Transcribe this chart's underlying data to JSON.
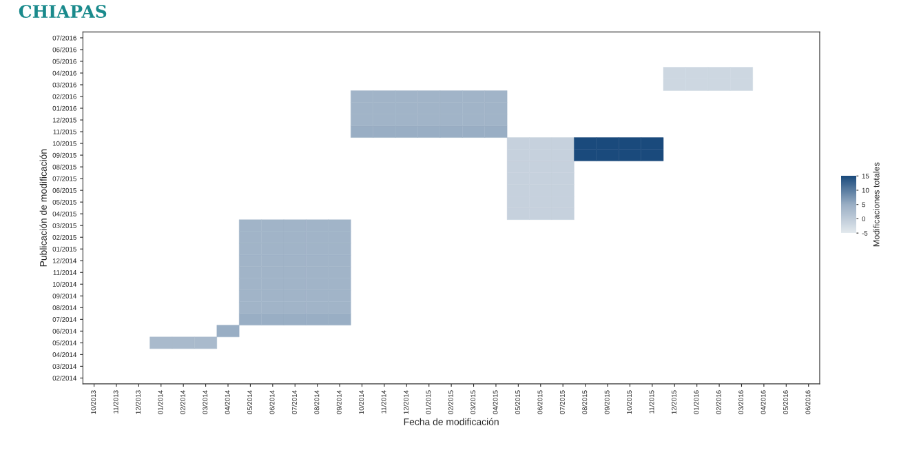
{
  "chart_data": {
    "type": "heatmap",
    "title": "CHIAPAS",
    "xlabel": "Fecha de modificación",
    "ylabel": "Publicación de modificación",
    "clabel": "Modificaciones totales",
    "categories": [
      "10/2013",
      "11/2013",
      "12/2013",
      "01/2014",
      "02/2014",
      "03/2014",
      "04/2014",
      "05/2014",
      "06/2014",
      "07/2014",
      "08/2014",
      "09/2014",
      "10/2014",
      "11/2014",
      "12/2014",
      "01/2015",
      "02/2015",
      "03/2015",
      "04/2015",
      "05/2015",
      "06/2015",
      "07/2015",
      "08/2015",
      "09/2015",
      "10/2015",
      "11/2015",
      "12/2015",
      "01/2016",
      "02/2016",
      "03/2016",
      "04/2016",
      "05/2016",
      "06/2016"
    ],
    "y_categories": [
      "07/2016",
      "06/2016",
      "05/2016",
      "04/2016",
      "03/2016",
      "02/2016",
      "01/2016",
      "12/2015",
      "11/2015",
      "10/2015",
      "09/2015",
      "08/2015",
      "07/2015",
      "06/2015",
      "05/2015",
      "04/2015",
      "03/2015",
      "02/2015",
      "01/2015",
      "12/2014",
      "11/2014",
      "10/2014",
      "09/2014",
      "08/2014",
      "07/2014",
      "06/2014",
      "05/2014",
      "04/2014",
      "03/2014",
      "02/2014"
    ],
    "cells": [
      [
        null,
        null,
        null,
        null,
        null,
        null,
        null,
        null,
        null,
        null,
        null,
        null,
        null,
        null,
        null,
        null,
        null,
        null,
        null,
        null,
        null,
        null,
        null,
        null,
        null,
        null,
        null,
        null,
        null,
        null,
        null,
        null,
        null
      ],
      [
        null,
        null,
        null,
        null,
        null,
        null,
        null,
        null,
        null,
        null,
        null,
        null,
        null,
        null,
        null,
        null,
        null,
        null,
        null,
        null,
        null,
        null,
        null,
        null,
        null,
        null,
        null,
        null,
        null,
        null,
        null,
        null,
        null
      ],
      [
        null,
        null,
        null,
        null,
        null,
        null,
        null,
        null,
        null,
        null,
        null,
        null,
        null,
        null,
        null,
        null,
        null,
        null,
        null,
        null,
        null,
        null,
        null,
        null,
        null,
        null,
        null,
        null,
        null,
        null,
        null,
        null,
        null
      ],
      [
        null,
        null,
        null,
        null,
        null,
        null,
        null,
        null,
        null,
        null,
        null,
        null,
        null,
        null,
        null,
        null,
        null,
        null,
        null,
        null,
        null,
        null,
        null,
        null,
        null,
        null,
        -2,
        -2,
        -2,
        -2,
        null,
        null,
        null
      ],
      [
        null,
        null,
        null,
        null,
        null,
        null,
        null,
        null,
        null,
        null,
        null,
        null,
        null,
        null,
        null,
        null,
        null,
        null,
        null,
        null,
        null,
        null,
        null,
        null,
        null,
        null,
        -2,
        -2,
        -2,
        -2,
        null,
        null,
        null
      ],
      [
        null,
        null,
        null,
        null,
        null,
        null,
        null,
        null,
        null,
        null,
        null,
        null,
        4,
        4,
        4,
        4,
        4,
        4,
        4,
        null,
        null,
        null,
        null,
        null,
        null,
        null,
        null,
        null,
        null,
        null,
        null,
        null,
        null
      ],
      [
        null,
        null,
        null,
        null,
        null,
        null,
        null,
        null,
        null,
        null,
        null,
        null,
        4,
        4,
        4,
        4,
        4,
        4,
        4,
        null,
        null,
        null,
        null,
        null,
        null,
        null,
        null,
        null,
        null,
        null,
        null,
        null,
        null
      ],
      [
        null,
        null,
        null,
        null,
        null,
        null,
        null,
        null,
        null,
        null,
        null,
        null,
        4,
        4,
        4,
        4,
        4,
        4,
        4,
        null,
        null,
        null,
        null,
        null,
        null,
        null,
        null,
        null,
        null,
        null,
        null,
        null,
        null
      ],
      [
        null,
        null,
        null,
        null,
        null,
        null,
        null,
        null,
        null,
        null,
        null,
        null,
        5,
        5,
        5,
        5,
        5,
        5,
        5,
        null,
        null,
        null,
        null,
        null,
        null,
        null,
        null,
        null,
        null,
        null,
        null,
        null,
        null
      ],
      [
        null,
        null,
        null,
        null,
        null,
        null,
        null,
        null,
        null,
        null,
        null,
        null,
        null,
        null,
        null,
        null,
        null,
        null,
        null,
        -1,
        -1,
        -1,
        15,
        15,
        15,
        15,
        null,
        null,
        null,
        null,
        null,
        null,
        null
      ],
      [
        null,
        null,
        null,
        null,
        null,
        null,
        null,
        null,
        null,
        null,
        null,
        null,
        null,
        null,
        null,
        null,
        null,
        null,
        null,
        -1,
        -1,
        -1,
        15,
        15,
        15,
        15,
        null,
        null,
        null,
        null,
        null,
        null,
        null
      ],
      [
        null,
        null,
        null,
        null,
        null,
        null,
        null,
        null,
        null,
        null,
        null,
        null,
        null,
        null,
        null,
        null,
        null,
        null,
        null,
        -1,
        -1,
        -1,
        null,
        null,
        null,
        null,
        null,
        null,
        null,
        null,
        null,
        null,
        null
      ],
      [
        null,
        null,
        null,
        null,
        null,
        null,
        null,
        null,
        null,
        null,
        null,
        null,
        null,
        null,
        null,
        null,
        null,
        null,
        null,
        -1,
        -1,
        -1,
        null,
        null,
        null,
        null,
        null,
        null,
        null,
        null,
        null,
        null,
        null
      ],
      [
        null,
        null,
        null,
        null,
        null,
        null,
        null,
        null,
        null,
        null,
        null,
        null,
        null,
        null,
        null,
        null,
        null,
        null,
        null,
        -1,
        -1,
        -1,
        null,
        null,
        null,
        null,
        null,
        null,
        null,
        null,
        null,
        null,
        null
      ],
      [
        null,
        null,
        null,
        null,
        null,
        null,
        null,
        null,
        null,
        null,
        null,
        null,
        null,
        null,
        null,
        null,
        null,
        null,
        null,
        -1,
        -1,
        -1,
        null,
        null,
        null,
        null,
        null,
        null,
        null,
        null,
        null,
        null,
        null
      ],
      [
        null,
        null,
        null,
        null,
        null,
        null,
        null,
        null,
        null,
        null,
        null,
        null,
        null,
        null,
        null,
        null,
        null,
        null,
        null,
        -1,
        -1,
        -1,
        null,
        null,
        null,
        null,
        null,
        null,
        null,
        null,
        null,
        null,
        null
      ],
      [
        null,
        null,
        null,
        null,
        null,
        null,
        null,
        4,
        4,
        4,
        4,
        4,
        null,
        null,
        null,
        null,
        null,
        null,
        null,
        null,
        null,
        null,
        null,
        null,
        null,
        null,
        null,
        null,
        null,
        null,
        null,
        null,
        null
      ],
      [
        null,
        null,
        null,
        null,
        null,
        null,
        null,
        4,
        4,
        4,
        4,
        4,
        null,
        null,
        null,
        null,
        null,
        null,
        null,
        null,
        null,
        null,
        null,
        null,
        null,
        null,
        null,
        null,
        null,
        null,
        null,
        null,
        null
      ],
      [
        null,
        null,
        null,
        null,
        null,
        null,
        null,
        4,
        4,
        4,
        4,
        4,
        null,
        null,
        null,
        null,
        null,
        null,
        null,
        null,
        null,
        null,
        null,
        null,
        null,
        null,
        null,
        null,
        null,
        null,
        null,
        null,
        null
      ],
      [
        null,
        null,
        null,
        null,
        null,
        null,
        null,
        4,
        4,
        4,
        4,
        4,
        null,
        null,
        null,
        null,
        null,
        null,
        null,
        null,
        null,
        null,
        null,
        null,
        null,
        null,
        null,
        null,
        null,
        null,
        null,
        null,
        null
      ],
      [
        null,
        null,
        null,
        null,
        null,
        null,
        null,
        4,
        4,
        4,
        4,
        4,
        null,
        null,
        null,
        null,
        null,
        null,
        null,
        null,
        null,
        null,
        null,
        null,
        null,
        null,
        null,
        null,
        null,
        null,
        null,
        null,
        null
      ],
      [
        null,
        null,
        null,
        null,
        null,
        null,
        null,
        4,
        4,
        4,
        4,
        4,
        null,
        null,
        null,
        null,
        null,
        null,
        null,
        null,
        null,
        null,
        null,
        null,
        null,
        null,
        null,
        null,
        null,
        null,
        null,
        null,
        null
      ],
      [
        null,
        null,
        null,
        null,
        null,
        null,
        null,
        4,
        4,
        4,
        4,
        4,
        null,
        null,
        null,
        null,
        null,
        null,
        null,
        null,
        null,
        null,
        null,
        null,
        null,
        null,
        null,
        null,
        null,
        null,
        null,
        null,
        null
      ],
      [
        null,
        null,
        null,
        null,
        null,
        null,
        null,
        4,
        4,
        4,
        4,
        4,
        null,
        null,
        null,
        null,
        null,
        null,
        null,
        null,
        null,
        null,
        null,
        null,
        null,
        null,
        null,
        null,
        null,
        null,
        null,
        null,
        null
      ],
      [
        null,
        null,
        null,
        null,
        null,
        null,
        null,
        5,
        5,
        5,
        5,
        5,
        null,
        null,
        null,
        null,
        null,
        null,
        null,
        null,
        null,
        null,
        null,
        null,
        null,
        null,
        null,
        null,
        null,
        null,
        null,
        null,
        null
      ],
      [
        null,
        null,
        null,
        null,
        null,
        null,
        5,
        null,
        null,
        null,
        null,
        null,
        null,
        null,
        null,
        null,
        null,
        null,
        null,
        null,
        null,
        null,
        null,
        null,
        null,
        null,
        null,
        null,
        null,
        null,
        null,
        null,
        null
      ],
      [
        null,
        null,
        null,
        3,
        3,
        3,
        null,
        null,
        null,
        null,
        null,
        null,
        null,
        null,
        null,
        null,
        null,
        null,
        null,
        null,
        null,
        null,
        null,
        null,
        null,
        null,
        null,
        null,
        null,
        null,
        null,
        null,
        null
      ],
      [
        null,
        null,
        null,
        null,
        null,
        null,
        null,
        null,
        null,
        null,
        null,
        null,
        null,
        null,
        null,
        null,
        null,
        null,
        null,
        null,
        null,
        null,
        null,
        null,
        null,
        null,
        null,
        null,
        null,
        null,
        null,
        null,
        null
      ],
      [
        null,
        null,
        null,
        null,
        null,
        null,
        null,
        null,
        null,
        null,
        null,
        null,
        null,
        null,
        null,
        null,
        null,
        null,
        null,
        null,
        null,
        null,
        null,
        null,
        null,
        null,
        null,
        null,
        null,
        null,
        null,
        null,
        null
      ],
      [
        null,
        null,
        null,
        null,
        null,
        null,
        null,
        null,
        null,
        null,
        null,
        null,
        null,
        null,
        null,
        null,
        null,
        null,
        null,
        null,
        null,
        null,
        null,
        null,
        null,
        null,
        null,
        null,
        null,
        null,
        null,
        null,
        null
      ]
    ],
    "clim": [
      -5,
      15
    ],
    "cticks": [
      -5,
      0,
      5,
      10,
      15
    ],
    "grid": false
  }
}
